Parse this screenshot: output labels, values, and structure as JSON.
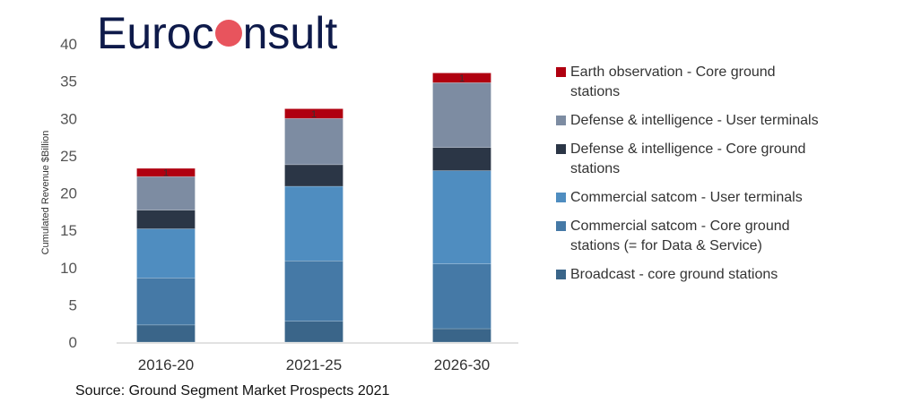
{
  "logo": {
    "text": "Euroconsult"
  },
  "source": "Source: Ground Segment Market Prospects 2021",
  "chart_data": {
    "type": "bar",
    "stacked": true,
    "title": "",
    "xlabel": "",
    "ylabel": "Cumulated Revenue $Billion",
    "ylim": [
      0,
      40
    ],
    "yticks": [
      "0",
      "5",
      "10",
      "15",
      "20",
      "25",
      "30",
      "35",
      "40"
    ],
    "categories": [
      "2016-20",
      "2021-25",
      "2026-30"
    ],
    "legend_position": "right",
    "series": [
      {
        "name": "Broadcast - core ground stations",
        "color": "#3a6589",
        "values": [
          2.3,
          2.8,
          1.8
        ]
      },
      {
        "name": "Commercial satcom - Core ground stations (= for Data & Service)",
        "color": "#4579a6",
        "values": [
          6.3,
          8.1,
          8.7
        ]
      },
      {
        "name": "Commercial satcom - User terminals",
        "color": "#4f8dc0",
        "values": [
          6.6,
          10.0,
          12.5
        ]
      },
      {
        "name": "Defense & intelligence - Core ground stations",
        "color": "#2b3646",
        "values": [
          2.5,
          2.9,
          3.1
        ]
      },
      {
        "name": "Defense & intelligence - User terminals",
        "color": "#7d8ca2",
        "values": [
          4.5,
          6.2,
          8.7
        ]
      },
      {
        "name": "Earth observation - Core ground stations",
        "color": "#b00010",
        "values": [
          1.1,
          1.3,
          1.3
        ],
        "data_labels": [
          "1",
          "1",
          "1"
        ]
      }
    ]
  }
}
